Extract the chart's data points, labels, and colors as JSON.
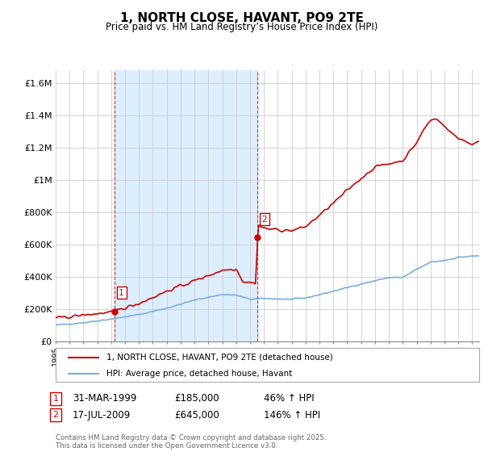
{
  "title": "1, NORTH CLOSE, HAVANT, PO9 2TE",
  "subtitle": "Price paid vs. HM Land Registry’s House Price Index (HPI)",
  "ylabel_ticks": [
    "£0",
    "£200K",
    "£400K",
    "£600K",
    "£800K",
    "£1M",
    "£1.2M",
    "£1.4M",
    "£1.6M"
  ],
  "ytick_values": [
    0,
    200000,
    400000,
    600000,
    800000,
    1000000,
    1200000,
    1400000,
    1600000
  ],
  "ylim": [
    0,
    1680000
  ],
  "xlim_start": 1995.0,
  "xlim_end": 2025.5,
  "sale1_x": 1999.24,
  "sale1_price": 185000,
  "sale2_x": 2009.54,
  "sale2_price": 645000,
  "legend_line1": "1, NORTH CLOSE, HAVANT, PO9 2TE (detached house)",
  "legend_line2": "HPI: Average price, detached house, Havant",
  "footer": "Contains HM Land Registry data © Crown copyright and database right 2025.\nThis data is licensed under the Open Government Licence v3.0.",
  "line_color_red": "#cc0000",
  "line_color_blue": "#7aade0",
  "vline_color": "#cc0000",
  "shade_color": "#ddeeff",
  "background_color": "#ffffff",
  "grid_color": "#cccccc"
}
